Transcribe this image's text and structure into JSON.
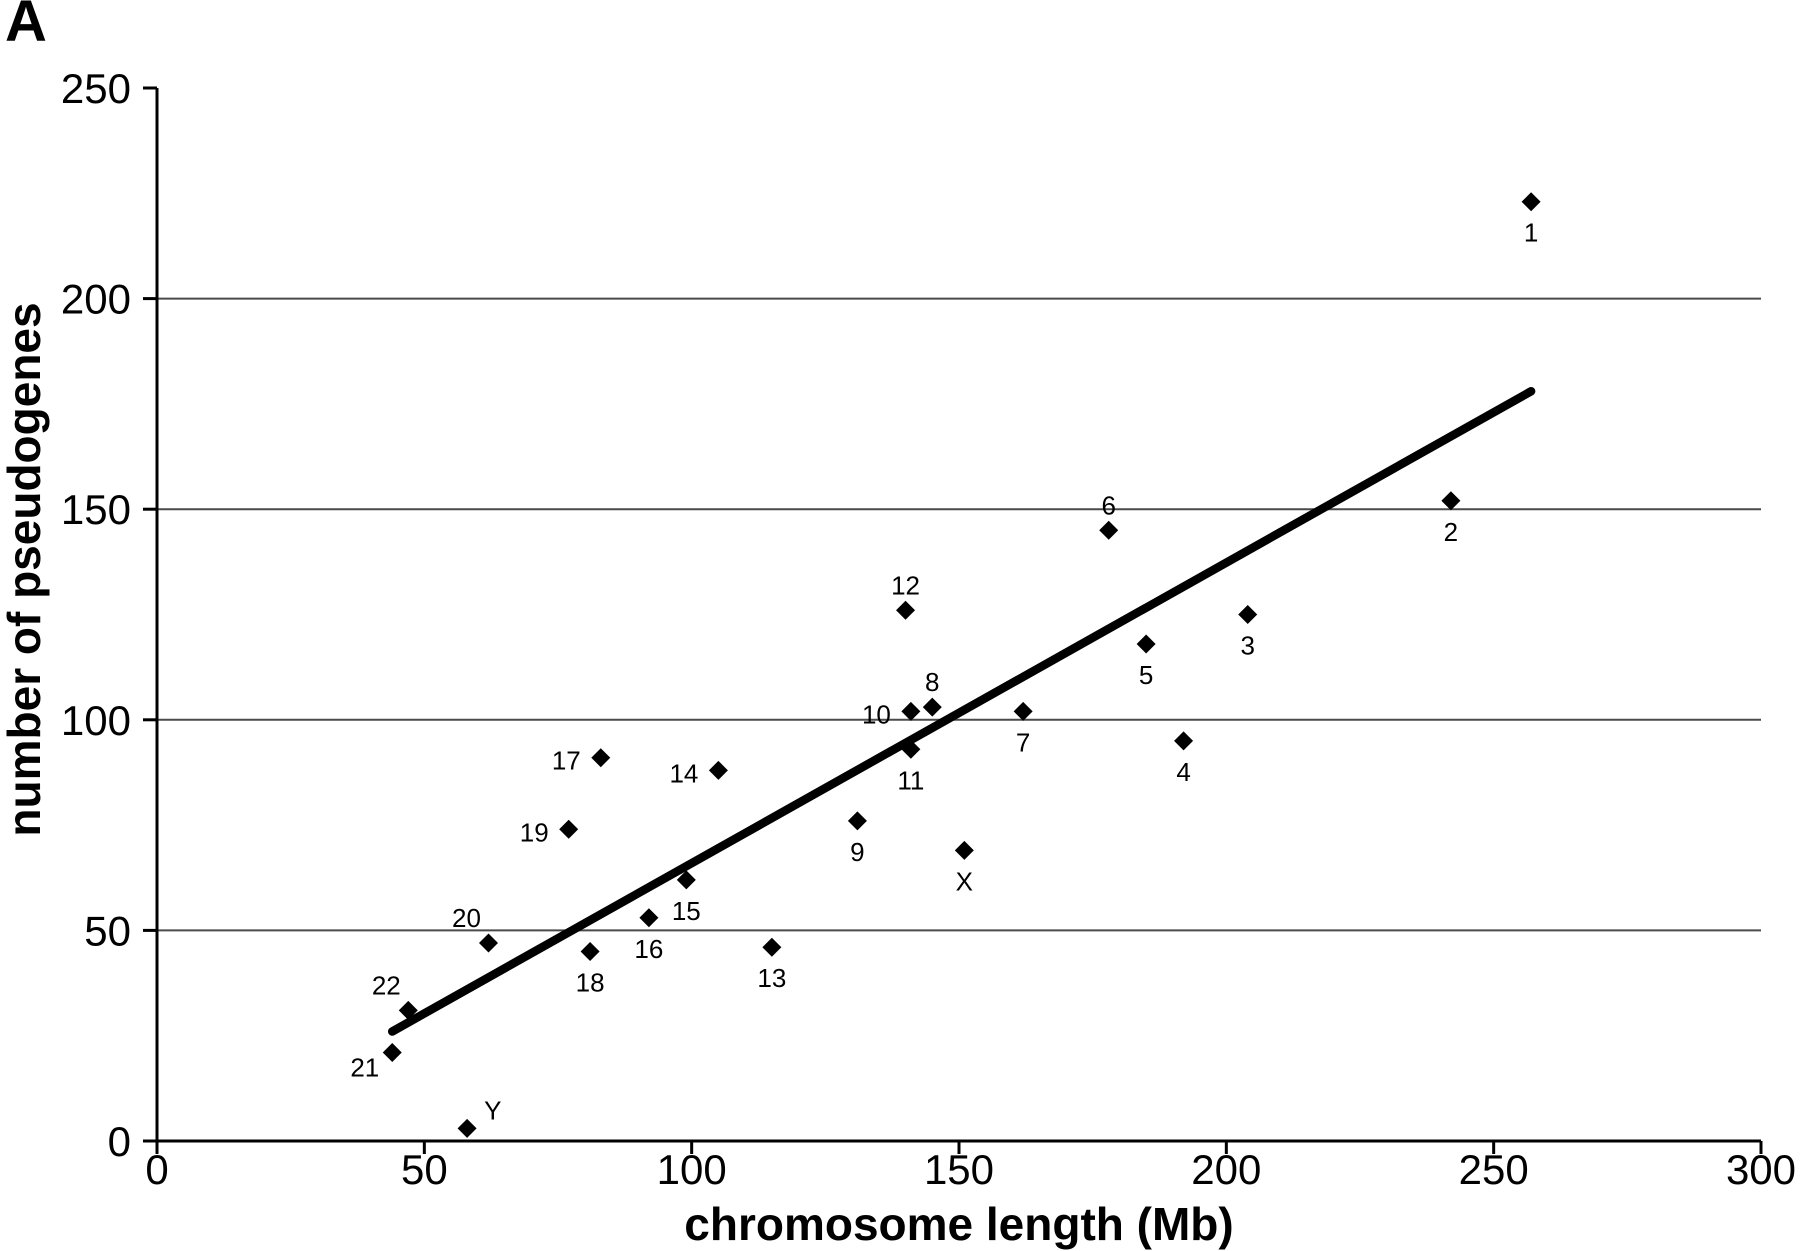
{
  "panel_label": "A",
  "chart_data": {
    "type": "scatter",
    "title": "",
    "xlabel": "chromosome length (Mb)",
    "ylabel": "number of pseudogenes",
    "xlim": [
      0,
      300
    ],
    "ylim": [
      0,
      250
    ],
    "xticks": [
      0,
      50,
      100,
      150,
      200,
      250,
      300
    ],
    "yticks": [
      0,
      50,
      100,
      150,
      200,
      250
    ],
    "gridlines_y": [
      50,
      100,
      150,
      200
    ],
    "grid": "horizontal-only",
    "legend": "none",
    "marker": "filled-diamond",
    "colors": {
      "marker": "#000000",
      "trendline": "#000000",
      "gridline": "#4a4a4a",
      "axis": "#000000",
      "background": "#ffffff"
    },
    "points": [
      {
        "label": "1",
        "x": 257,
        "y": 223,
        "label_pos": "below"
      },
      {
        "label": "2",
        "x": 242,
        "y": 152,
        "label_pos": "below"
      },
      {
        "label": "3",
        "x": 204,
        "y": 125,
        "label_pos": "below"
      },
      {
        "label": "4",
        "x": 192,
        "y": 95,
        "label_pos": "below"
      },
      {
        "label": "5",
        "x": 185,
        "y": 118,
        "label_pos": "below"
      },
      {
        "label": "6",
        "x": 178,
        "y": 145,
        "label_pos": "above"
      },
      {
        "label": "7",
        "x": 162,
        "y": 102,
        "label_pos": "below"
      },
      {
        "label": "8",
        "x": 145,
        "y": 103,
        "label_pos": "above"
      },
      {
        "label": "9",
        "x": 131,
        "y": 76,
        "label_pos": "below"
      },
      {
        "label": "10",
        "x": 141,
        "y": 102,
        "label_pos": "left"
      },
      {
        "label": "11",
        "x": 141,
        "y": 93,
        "label_pos": "below"
      },
      {
        "label": "12",
        "x": 140,
        "y": 126,
        "label_pos": "above"
      },
      {
        "label": "13",
        "x": 115,
        "y": 46,
        "label_pos": "below"
      },
      {
        "label": "14",
        "x": 105,
        "y": 88,
        "label_pos": "left"
      },
      {
        "label": "15",
        "x": 99,
        "y": 62,
        "label_pos": "below"
      },
      {
        "label": "16",
        "x": 92,
        "y": 53,
        "label_pos": "below"
      },
      {
        "label": "17",
        "x": 83,
        "y": 91,
        "label_pos": "left"
      },
      {
        "label": "18",
        "x": 81,
        "y": 45,
        "label_pos": "below"
      },
      {
        "label": "19",
        "x": 77,
        "y": 74,
        "label_pos": "left"
      },
      {
        "label": "20",
        "x": 62,
        "y": 47,
        "label_pos": "above-left"
      },
      {
        "label": "21",
        "x": 44,
        "y": 21,
        "label_pos": "left-below"
      },
      {
        "label": "22",
        "x": 47,
        "y": 31,
        "label_pos": "above-left"
      },
      {
        "label": "X",
        "x": 151,
        "y": 69,
        "label_pos": "below"
      },
      {
        "label": "Y",
        "x": 58,
        "y": 3,
        "label_pos": "above-right"
      }
    ],
    "trendline": {
      "x1": 44,
      "y1": 26,
      "x2": 257,
      "y2": 178
    }
  }
}
